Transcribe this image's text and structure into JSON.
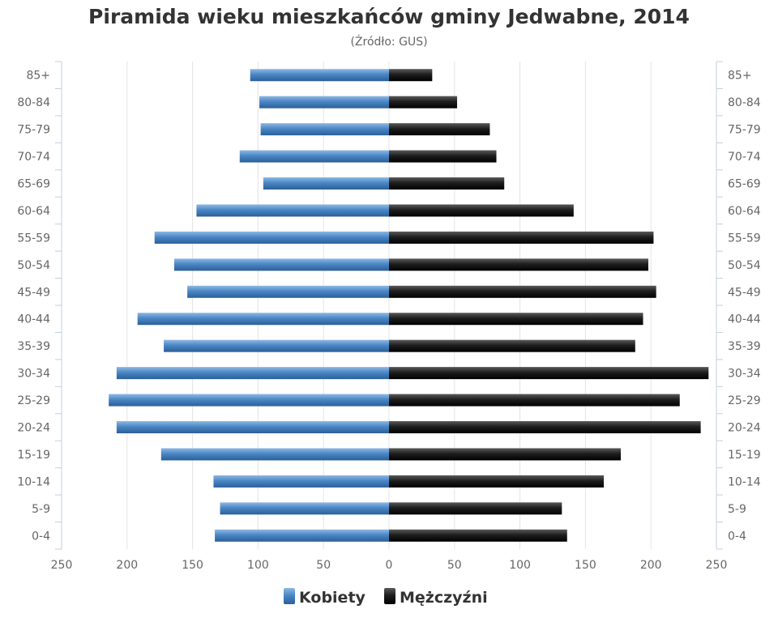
{
  "chart_data": {
    "type": "bar",
    "orientation": "horizontal",
    "layout": "population-pyramid",
    "title": "Piramida wieku mieszkańców gminy Jedwabne, 2014",
    "subtitle": "(Źródło: GUS)",
    "categories": [
      "85+",
      "80-84",
      "75-79",
      "70-74",
      "65-69",
      "60-64",
      "55-59",
      "50-54",
      "45-49",
      "40-44",
      "35-39",
      "30-34",
      "25-29",
      "20-24",
      "15-19",
      "10-14",
      "5-9",
      "0-4"
    ],
    "series": [
      {
        "name": "Kobiety",
        "color": "#4a87c6",
        "values": [
          106,
          99,
          98,
          114,
          96,
          147,
          179,
          164,
          154,
          192,
          172,
          208,
          214,
          208,
          174,
          134,
          129,
          133
        ]
      },
      {
        "name": "Mężczyźni",
        "color": "#222222",
        "values": [
          33,
          52,
          77,
          82,
          88,
          141,
          202,
          198,
          204,
          194,
          188,
          244,
          222,
          238,
          177,
          164,
          132,
          136
        ]
      }
    ],
    "xlim": [
      -250,
      250
    ],
    "xticks": [
      "250",
      "200",
      "150",
      "100",
      "50",
      "0",
      "50",
      "100",
      "150",
      "200",
      "250"
    ],
    "grid": true,
    "legend": "bottom-center"
  }
}
